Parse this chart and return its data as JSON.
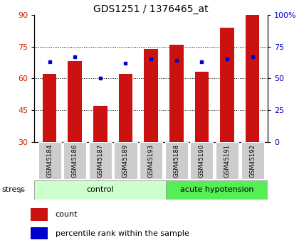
{
  "title": "GDS1251 / 1376465_at",
  "samples": [
    "GSM45184",
    "GSM45186",
    "GSM45187",
    "GSM45189",
    "GSM45193",
    "GSM45188",
    "GSM45190",
    "GSM45191",
    "GSM45192"
  ],
  "count_values": [
    62,
    68,
    47,
    62,
    74,
    76,
    63,
    84,
    90
  ],
  "percentile_values": [
    63,
    67,
    50,
    62,
    65,
    64,
    63,
    65,
    67
  ],
  "left_ylim": [
    30,
    90
  ],
  "right_ylim": [
    0,
    100
  ],
  "left_yticks": [
    30,
    45,
    60,
    75,
    90
  ],
  "right_yticks": [
    0,
    25,
    50,
    75,
    100
  ],
  "right_yticklabels": [
    "0",
    "25",
    "50",
    "75",
    "100%"
  ],
  "bar_color": "#cc1111",
  "dot_color": "#0000cc",
  "n_control": 5,
  "n_acute": 4,
  "control_label": "control",
  "acute_label": "acute hypotension",
  "stress_label": "stress",
  "legend_count": "count",
  "legend_percentile": "percentile rank within the sample",
  "title_fontsize": 10,
  "tick_label_color_left": "#cc2200",
  "tick_label_color_right": "#0000cc",
  "xticklabel_bg": "#cccccc",
  "control_bg": "#ccffcc",
  "acute_bg": "#55ee55",
  "bar_width": 0.55
}
